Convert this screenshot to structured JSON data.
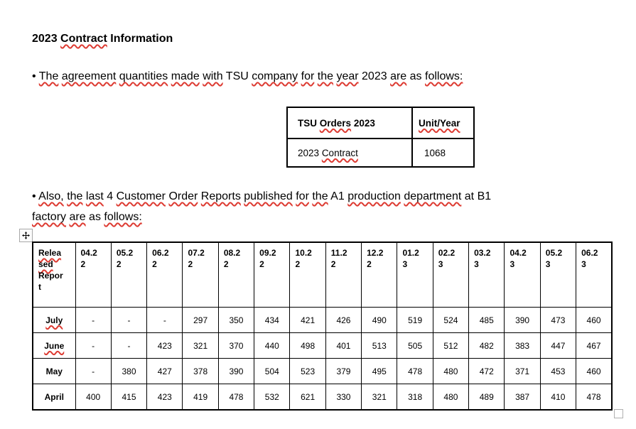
{
  "colors": {
    "squiggle": "#dd3b32",
    "text": "#000000",
    "table_border": "#000000",
    "handle_border": "#a8a8a8"
  },
  "icons": {
    "move_handle": "move-cross-icon",
    "resize_handle": "resize-square-icon"
  },
  "title_tokens": [
    {
      "t": "2023"
    },
    {
      "t": "Contract",
      "sq": true
    },
    {
      "t": "Information"
    }
  ],
  "bullet1_tokens": [
    {
      "t": "•"
    },
    {
      "t": "The",
      "sq": true
    },
    {
      "t": "agreement",
      "sq": true
    },
    {
      "t": "quantities",
      "sq": true
    },
    {
      "t": "made",
      "sq": true
    },
    {
      "t": "with",
      "sq": true
    },
    {
      "t": "TSU"
    },
    {
      "t": "company",
      "sq": true
    },
    {
      "t": "for",
      "sq": true
    },
    {
      "t": "the",
      "sq": true
    },
    {
      "t": "year",
      "sq": true
    },
    {
      "t": "2023"
    },
    {
      "t": "are",
      "sq": true
    },
    {
      "t": "as"
    },
    {
      "t": "follows:",
      "sq": true
    }
  ],
  "bullet2_tokens": [
    {
      "t": "•"
    },
    {
      "t": "Also,",
      "sq": true
    },
    {
      "t": "the",
      "sq": true
    },
    {
      "t": "last",
      "sq": true
    },
    {
      "t": "4"
    },
    {
      "t": "Customer",
      "sq": true
    },
    {
      "t": "Order",
      "sq": true
    },
    {
      "t": "Reports",
      "sq": true
    },
    {
      "t": "published",
      "sq": true
    },
    {
      "t": "for",
      "sq": true
    },
    {
      "t": "the",
      "sq": true
    },
    {
      "t": "A1"
    },
    {
      "t": "production",
      "sq": true
    },
    {
      "t": "department",
      "sq": true
    },
    {
      "t": "at"
    },
    {
      "t": "B1",
      "br": true
    },
    {
      "t": "factory",
      "sq": true
    },
    {
      "t": "are",
      "sq": true
    },
    {
      "t": "as"
    },
    {
      "t": "follows:",
      "sq": true
    }
  ],
  "contract_table": {
    "header_col1_tokens": [
      {
        "t": "TSU"
      },
      {
        "t": "Orders",
        "sq": true
      },
      {
        "t": "2023"
      }
    ],
    "header_col2_tokens": [
      {
        "t": "Unit/Year",
        "sq": true
      }
    ],
    "row_label_tokens": [
      {
        "t": "2023"
      },
      {
        "t": "Contract",
        "sq": true
      }
    ],
    "row_value": "1068"
  },
  "report_table": {
    "corner_tokens": [
      {
        "t": "Relea",
        "sq": true,
        "br": true
      },
      {
        "t": "sed",
        "sq": true,
        "br": true
      },
      {
        "t": "Repor",
        "br": true
      },
      {
        "t": "t"
      }
    ],
    "months": [
      "04.2\n2",
      "05.2\n2",
      "06.2\n2",
      "07.2\n2",
      "08.2\n2",
      "09.2\n2",
      "10.2\n2",
      "11.2\n2",
      "12.2\n2",
      "01.2\n3",
      "02.2\n3",
      "03.2\n3",
      "04.2\n3",
      "05.2\n3",
      "06.2\n3"
    ],
    "rows": [
      {
        "label": "July",
        "sq": true,
        "values": [
          "-",
          "-",
          "-",
          "297",
          "350",
          "434",
          "421",
          "426",
          "490",
          "519",
          "524",
          "485",
          "390",
          "473",
          "460"
        ]
      },
      {
        "label": "June",
        "sq": true,
        "values": [
          "-",
          "-",
          "423",
          "321",
          "370",
          "440",
          "498",
          "401",
          "513",
          "505",
          "512",
          "482",
          "383",
          "447",
          "467"
        ]
      },
      {
        "label": "May",
        "sq": false,
        "values": [
          "-",
          "380",
          "427",
          "378",
          "390",
          "504",
          "523",
          "379",
          "495",
          "478",
          "480",
          "472",
          "371",
          "453",
          "460"
        ]
      },
      {
        "label": "April",
        "sq": false,
        "values": [
          "400",
          "415",
          "423",
          "419",
          "478",
          "532",
          "621",
          "330",
          "321",
          "318",
          "480",
          "489",
          "387",
          "410",
          "478"
        ]
      }
    ]
  }
}
